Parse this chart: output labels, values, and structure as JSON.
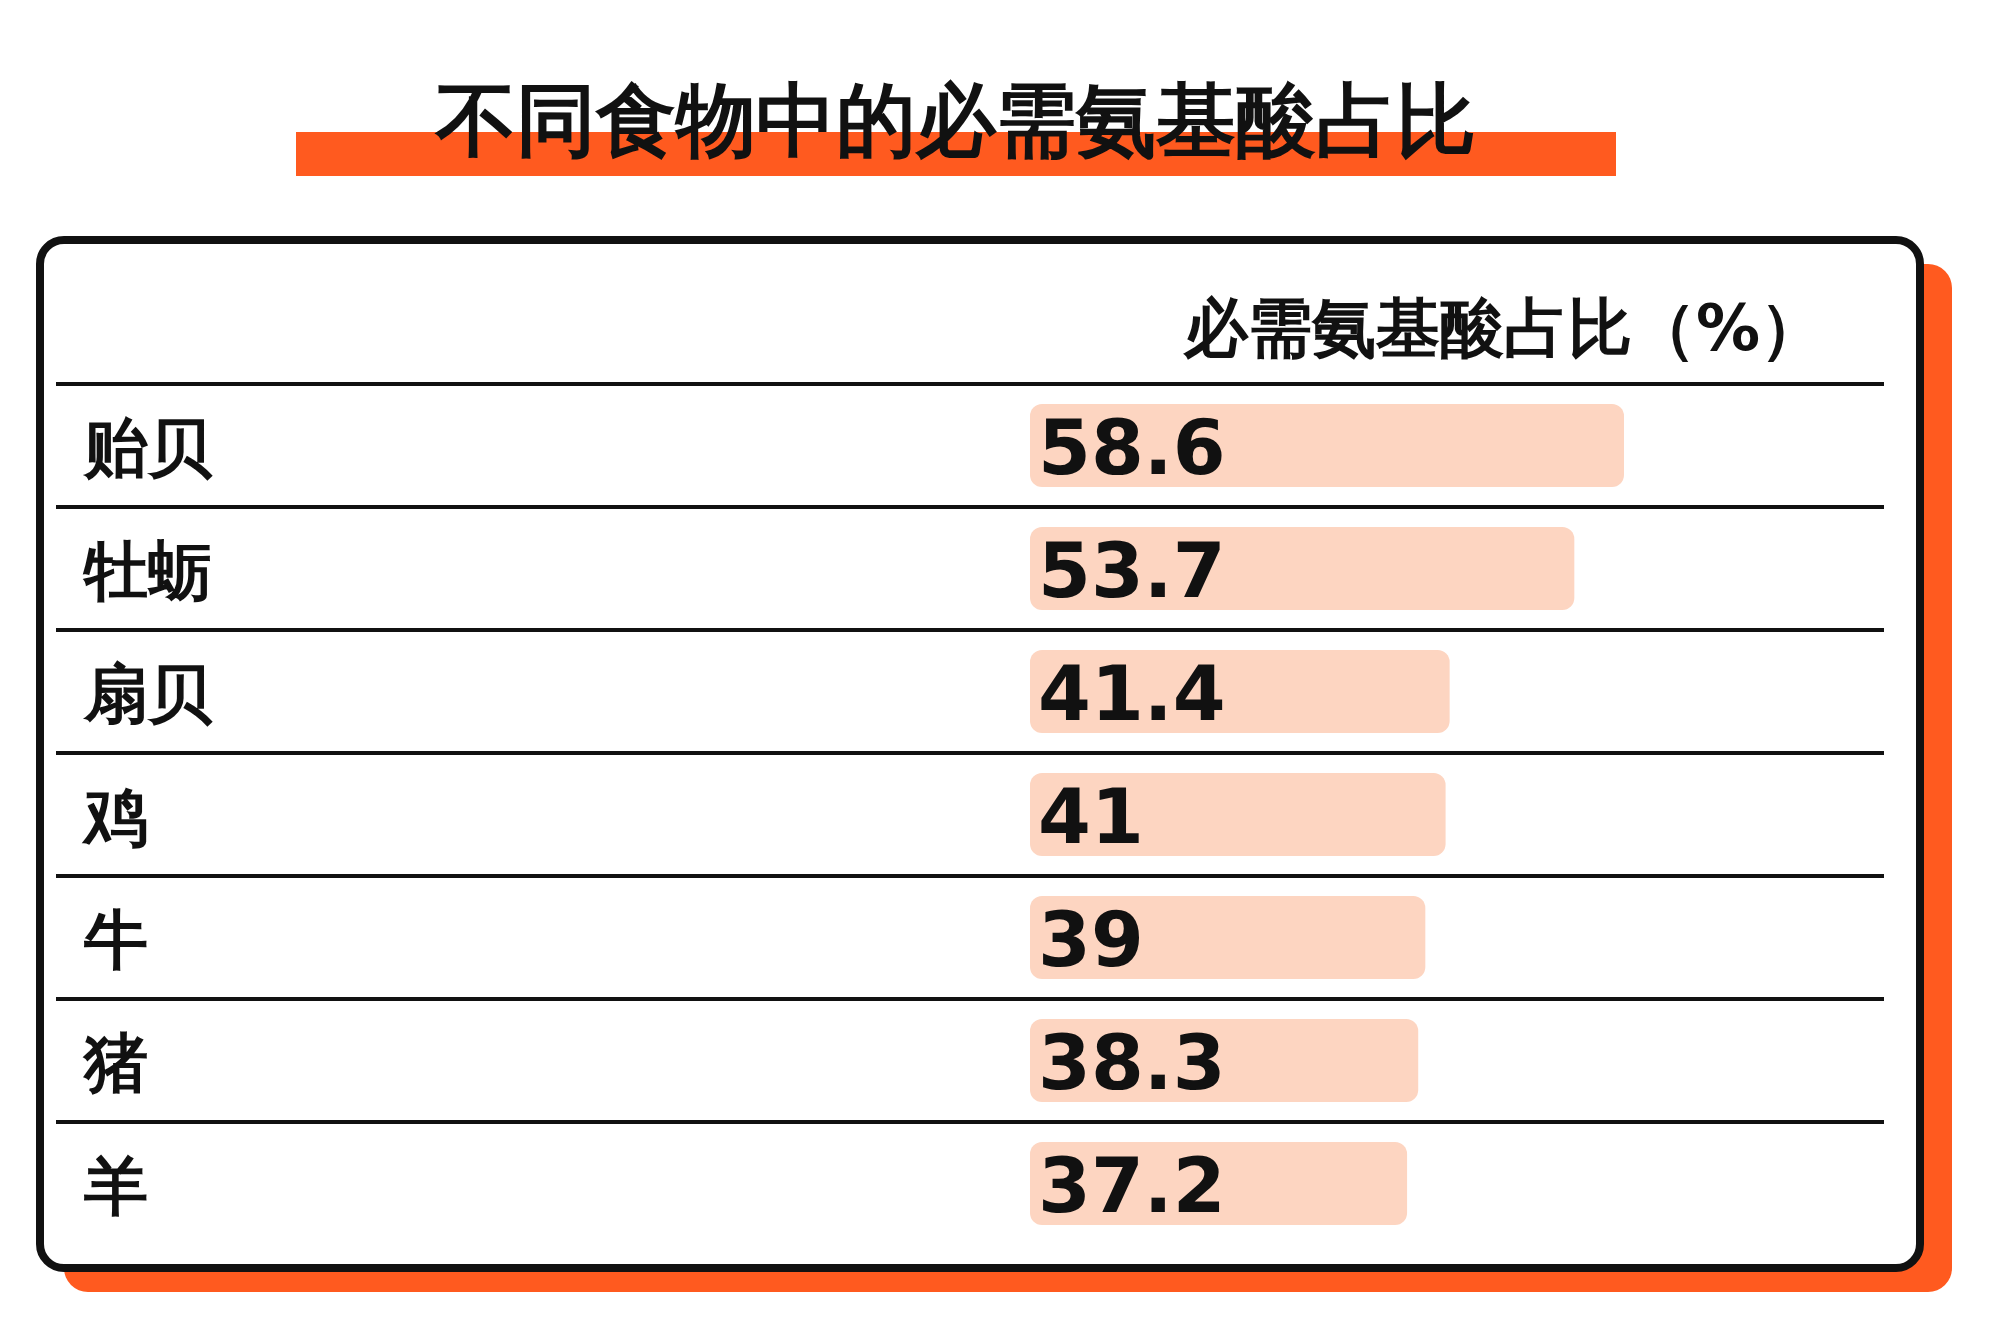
{
  "chart_data": {
    "type": "bar",
    "orientation": "horizontal",
    "title": "不同食物中的必需氨基酸占比",
    "xlabel": "必需氨基酸占比（%）",
    "categories": [
      "贻贝",
      "牡蛎",
      "扇贝",
      "鸡",
      "牛",
      "猪",
      "羊"
    ],
    "values": [
      58.6,
      53.7,
      41.4,
      41,
      39,
      38.3,
      37.2
    ],
    "color": "#fdd5c1",
    "data_labels": true
  }
}
